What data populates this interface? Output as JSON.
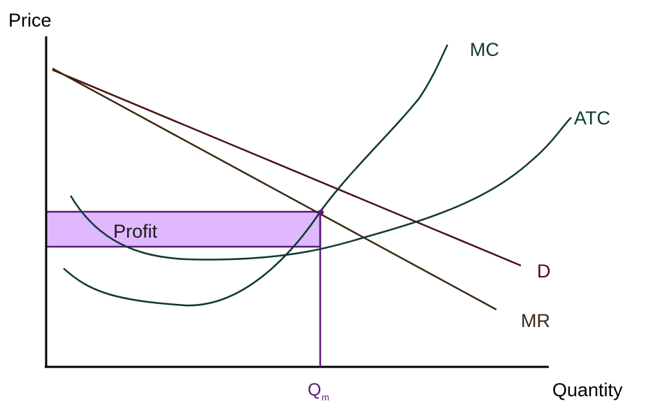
{
  "axes": {
    "y_label": "Price",
    "x_label": "Quantity"
  },
  "curves": {
    "mc": {
      "label": "MC",
      "color": "#0f3a2e"
    },
    "atc": {
      "label": "ATC",
      "color": "#10383a"
    },
    "demand": {
      "label": "D",
      "color": "#4a1010"
    },
    "mr": {
      "label": "MR",
      "color": "#3a2a12"
    }
  },
  "profit_region": {
    "label": "Profit",
    "fill": "#e0b8ff",
    "stroke": "#5a1a78"
  },
  "quantity_marker": {
    "label": "Q",
    "subscript": "m",
    "color": "#5a1a78"
  }
}
